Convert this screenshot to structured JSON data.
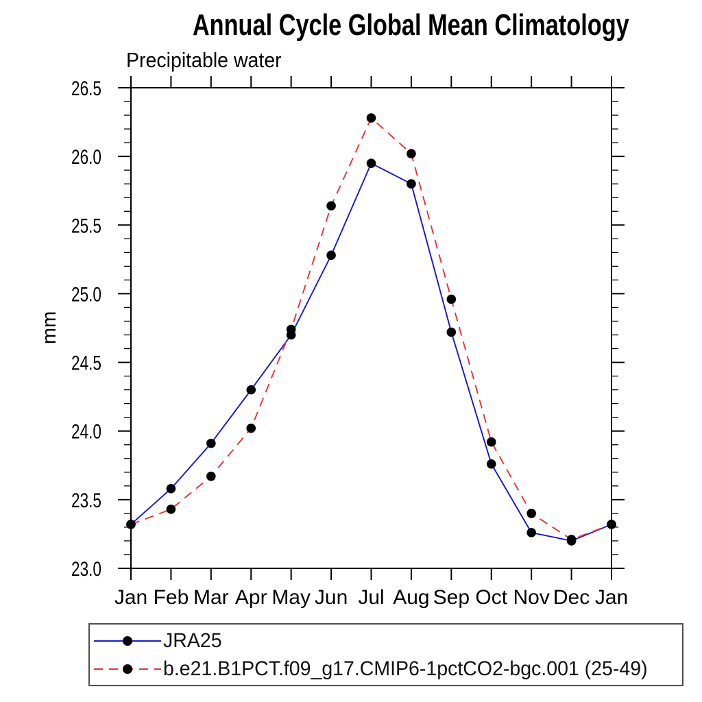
{
  "chart_data": {
    "type": "line",
    "title": "Annual Cycle Global Mean Climatology",
    "subtitle": "Precipitable water",
    "ylabel": "mm",
    "xlabel": "",
    "categories": [
      "Jan",
      "Feb",
      "Mar",
      "Apr",
      "May",
      "Jun",
      "Jul",
      "Aug",
      "Sep",
      "Oct",
      "Nov",
      "Dec",
      "Jan"
    ],
    "ylim": [
      23.0,
      26.5
    ],
    "ytick_major_step": 0.5,
    "ytick_minor_step": 0.1,
    "ytick_labels": [
      "23.0",
      "23.5",
      "24.0",
      "24.5",
      "25.0",
      "25.5",
      "26.0",
      "26.5"
    ],
    "grid": false,
    "legend_position": "bottom-left",
    "marker": "filled-circle",
    "marker_color": "#000000",
    "axis_color": "#000000",
    "series": [
      {
        "name": "JRA25",
        "color": "#1414e6",
        "line_style": "solid",
        "values": [
          23.32,
          23.58,
          23.91,
          24.3,
          24.7,
          25.28,
          25.95,
          25.8,
          24.72,
          23.76,
          23.26,
          23.2,
          23.32
        ]
      },
      {
        "name": "b.e21.B1PCT.f09_g17.CMIP6-1pctCO2-bgc.001 (25-49)",
        "color": "#f23030",
        "line_style": "dashed",
        "values": [
          23.32,
          23.43,
          23.67,
          24.02,
          24.74,
          25.64,
          26.28,
          26.02,
          24.96,
          23.92,
          23.4,
          23.21,
          23.32
        ]
      }
    ]
  }
}
